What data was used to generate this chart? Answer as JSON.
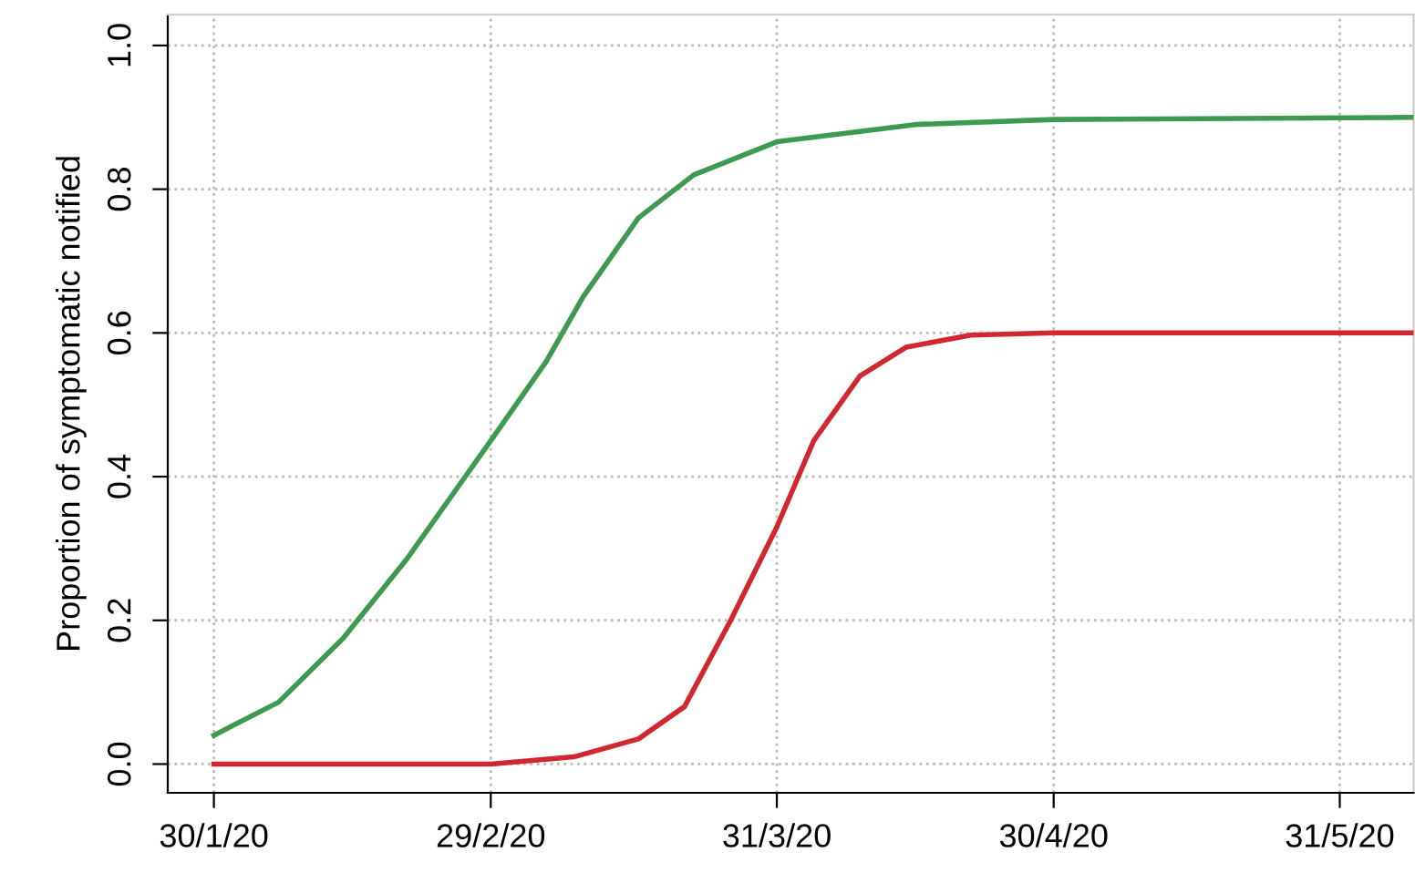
{
  "chart_data": {
    "type": "line",
    "ylabel": "Proportion of symptomatic notified",
    "xlim": [
      "2020-01-25",
      "2020-06-08"
    ],
    "ylim": [
      -0.04,
      1.043
    ],
    "xticks": [
      {
        "value": "2020-01-30",
        "label": "30/1/20"
      },
      {
        "value": "2020-02-29",
        "label": "29/2/20"
      },
      {
        "value": "2020-03-31",
        "label": "31/3/20"
      },
      {
        "value": "2020-04-30",
        "label": "30/4/20"
      },
      {
        "value": "2020-05-31",
        "label": "31/5/20"
      }
    ],
    "yticks": [
      {
        "value": 0,
        "label": "0.0"
      },
      0.2,
      0.4,
      0.6,
      0.8,
      {
        "value": 1,
        "label": "1.0"
      }
    ],
    "grid": true,
    "line_style": "solid",
    "marker": "none",
    "series": [
      {
        "color": "#3d9a50",
        "x": [
          "2020-01-30",
          "2020-02-06",
          "2020-02-13",
          "2020-02-20",
          "2020-02-29",
          "2020-03-06",
          "2020-03-10",
          "2020-03-16",
          "2020-03-22",
          "2020-03-31",
          "2020-04-15",
          "2020-04-30",
          "2020-06-08"
        ],
        "values": [
          0.04,
          0.086,
          0.175,
          0.287,
          0.45,
          0.56,
          0.65,
          0.76,
          0.82,
          0.866,
          0.89,
          0.897,
          0.9
        ]
      },
      {
        "color": "#d0282e",
        "x": [
          "2020-01-30",
          "2020-02-29",
          "2020-03-09",
          "2020-03-16",
          "2020-03-21",
          "2020-03-26",
          "2020-03-31",
          "2020-04-04",
          "2020-04-09",
          "2020-04-14",
          "2020-04-21",
          "2020-04-30",
          "2020-06-08"
        ],
        "values": [
          0.0,
          0.0,
          0.01,
          0.035,
          0.08,
          0.2,
          0.33,
          0.45,
          0.54,
          0.58,
          0.597,
          0.6,
          0.6
        ]
      }
    ]
  }
}
